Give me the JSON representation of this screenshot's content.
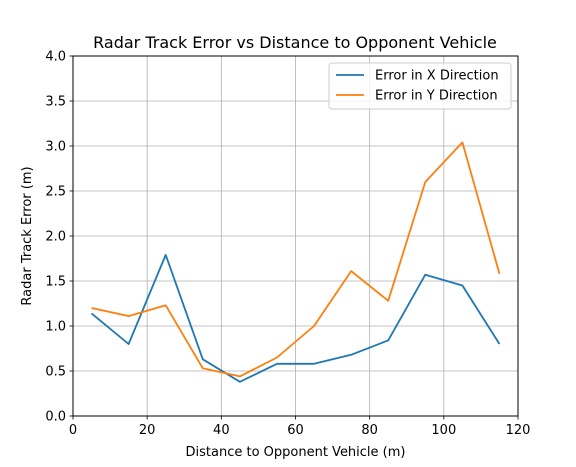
{
  "chart_data": {
    "type": "line",
    "title": "Radar Track Error vs Distance to Opponent Vehicle",
    "xlabel": "Distance to Opponent Vehicle (m)",
    "ylabel": "Radar Track Error (m)",
    "x": [
      5,
      15,
      25,
      35,
      45,
      55,
      65,
      75,
      85,
      95,
      105,
      115
    ],
    "series": [
      {
        "name": "Error in X Direction",
        "color": "#1f77b4",
        "values": [
          1.14,
          0.8,
          1.79,
          0.63,
          0.38,
          0.58,
          0.58,
          0.68,
          0.84,
          1.57,
          1.45,
          0.8
        ]
      },
      {
        "name": "Error in Y Direction",
        "color": "#ff7f0e",
        "values": [
          1.2,
          1.11,
          1.23,
          0.53,
          0.44,
          0.65,
          1.0,
          1.61,
          1.28,
          2.6,
          3.04,
          1.58
        ]
      }
    ],
    "xlim": [
      0,
      120
    ],
    "ylim": [
      0,
      4
    ],
    "xticks": [
      "0",
      "20",
      "40",
      "60",
      "80",
      "100",
      "120"
    ],
    "yticks": [
      "0.0",
      "0.5",
      "1.0",
      "1.5",
      "2.0",
      "2.5",
      "3.0",
      "3.5",
      "4.0"
    ],
    "grid": true,
    "legend_position": "top-right"
  }
}
